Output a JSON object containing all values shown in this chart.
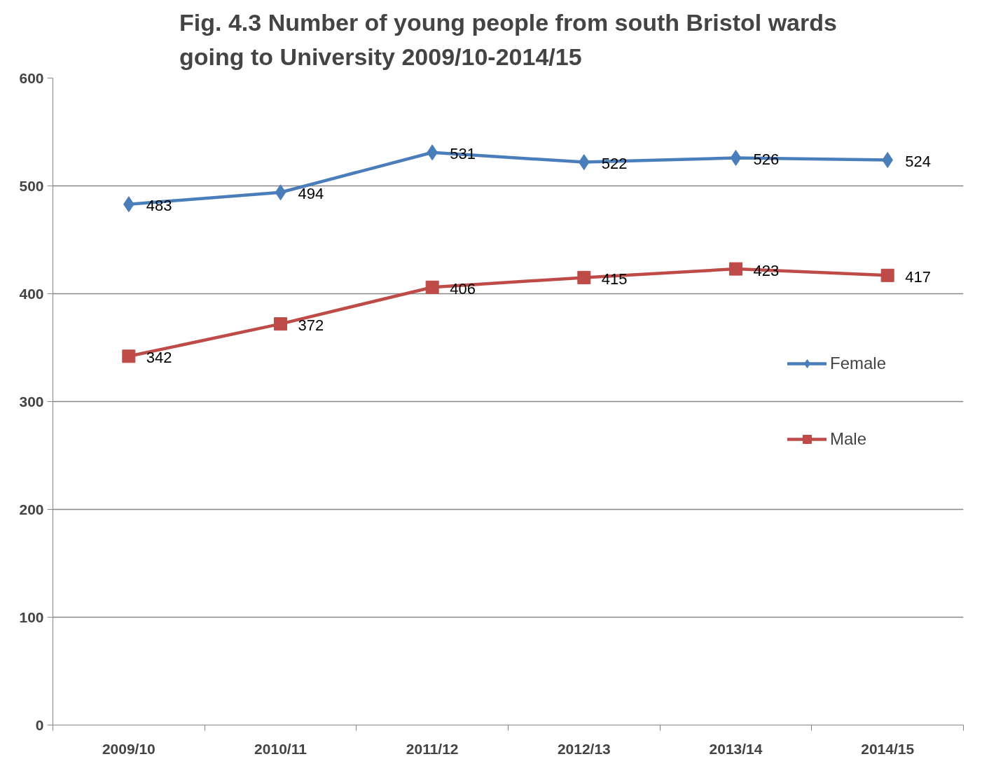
{
  "chart_data": {
    "type": "line",
    "title": "Fig. 4.3 Number of young people from south Bristol wards going to University 2009/10-2014/15",
    "categories": [
      "2009/10",
      "2010/11",
      "2011/12",
      "2012/13",
      "2013/14",
      "2014/15"
    ],
    "series": [
      {
        "name": "Female",
        "color": "#4a7ebb",
        "marker": "diamond",
        "values": [
          483,
          494,
          531,
          522,
          526,
          524
        ]
      },
      {
        "name": "Male",
        "color": "#be4b48",
        "marker": "square",
        "values": [
          342,
          372,
          406,
          415,
          423,
          417
        ]
      }
    ],
    "ylim": [
      0,
      600
    ],
    "yticks": [
      0,
      100,
      200,
      300,
      400,
      500,
      600
    ],
    "grid": "y",
    "legend": "right",
    "data_labels": true,
    "line_style": "solid"
  }
}
